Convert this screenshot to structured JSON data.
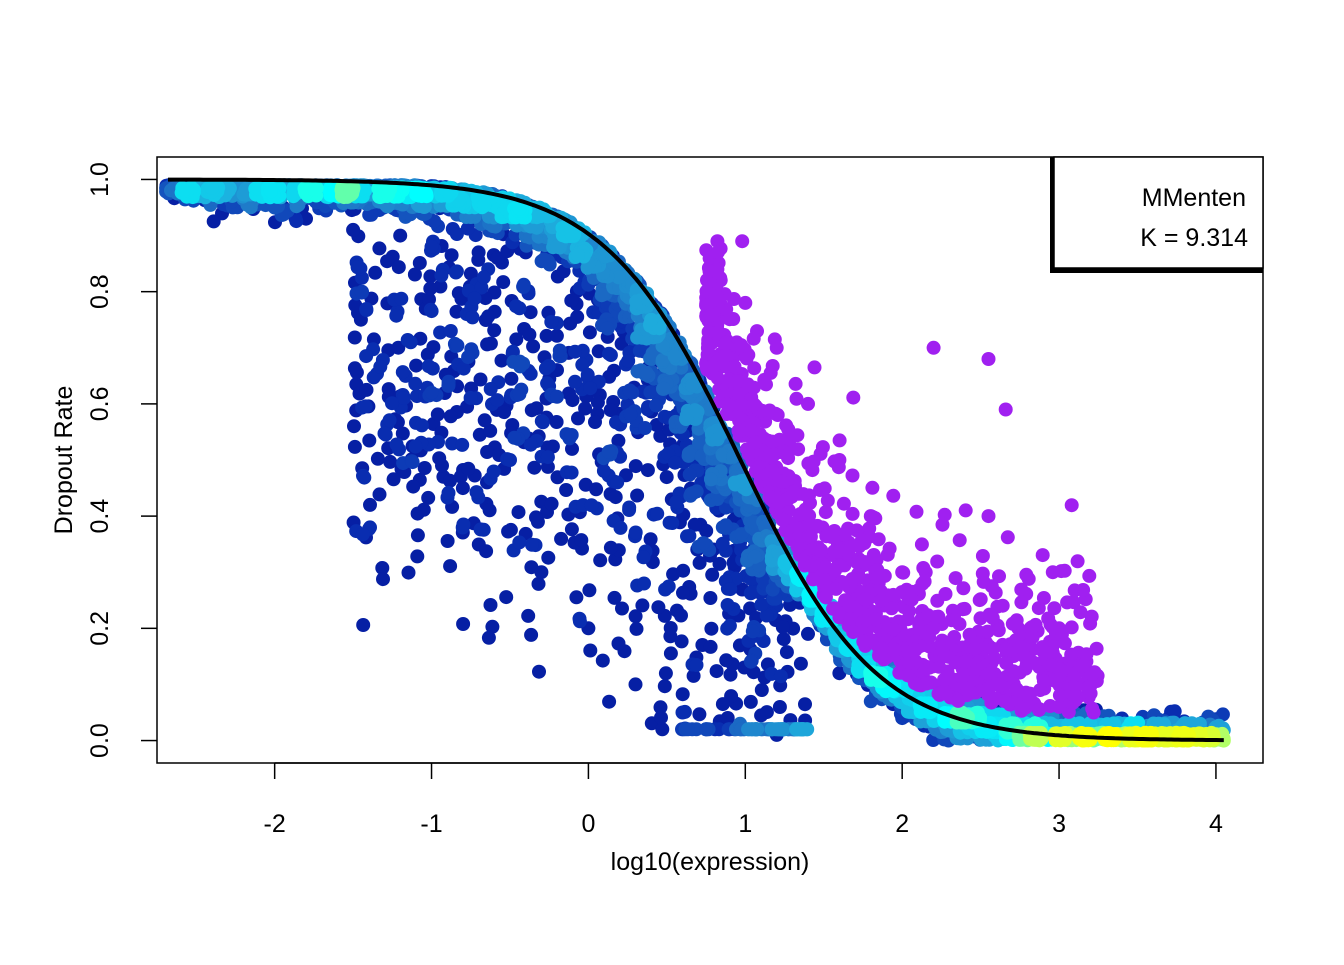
{
  "chart_data": {
    "type": "scatter",
    "title": "",
    "xlabel": "log10(expression)",
    "ylabel": "Dropout Rate",
    "xlim": [
      -2.75,
      4.3
    ],
    "ylim": [
      -0.04,
      1.04
    ],
    "xticks": [
      -2,
      -1,
      0,
      1,
      2,
      3,
      4
    ],
    "yticks": [
      0.0,
      0.2,
      0.4,
      0.6,
      0.8,
      1.0
    ],
    "xtick_labels": [
      "-2",
      "-1",
      "0",
      "1",
      "2",
      "3",
      "4"
    ],
    "ytick_labels": [
      "0.0",
      "0.2",
      "0.4",
      "0.6",
      "0.8",
      "1.0"
    ],
    "grid": false,
    "legend": {
      "position": "top-right",
      "lines": [
        "MMenten",
        "K = 9.314"
      ]
    },
    "fit_curve": {
      "name": "MMenten",
      "K": 9.314,
      "color": "#000000"
    },
    "density_colormap": [
      "#00008b",
      "#0a32b4",
      "#1f78c8",
      "#1eaadc",
      "#00ffff",
      "#b4ff64",
      "#ffff00"
    ],
    "highlight_color": "#a020f0",
    "sample_points": {
      "density": [
        [
          -2.68,
          0.985
        ],
        [
          -2.45,
          0.975
        ],
        [
          -2.2,
          0.965
        ],
        [
          -2.0,
          0.95
        ],
        [
          -1.8,
          0.93
        ],
        [
          -1.5,
          0.91
        ],
        [
          -1.2,
          0.9
        ],
        [
          -1.0,
          0.88
        ],
        [
          -0.7,
          0.87
        ],
        [
          -0.4,
          0.87
        ],
        [
          -0.2,
          0.88
        ],
        [
          0.0,
          0.85
        ],
        [
          0.2,
          0.8
        ],
        [
          0.4,
          0.75
        ],
        [
          0.6,
          0.66
        ],
        [
          0.8,
          0.56
        ],
        [
          1.0,
          0.43
        ],
        [
          1.2,
          0.3
        ],
        [
          1.4,
          0.19
        ],
        [
          1.6,
          0.12
        ],
        [
          1.8,
          0.07
        ],
        [
          2.0,
          0.04
        ],
        [
          2.2,
          0.035
        ],
        [
          2.4,
          0.03
        ],
        [
          2.6,
          0.02
        ],
        [
          2.8,
          0.012
        ],
        [
          3.0,
          0.01
        ],
        [
          3.3,
          0.006
        ],
        [
          3.6,
          0.002
        ],
        [
          4.05,
          0.0
        ],
        [
          -1.45,
          0.75
        ],
        [
          -1.0,
          0.62
        ],
        [
          -0.5,
          0.5
        ],
        [
          -0.8,
          0.45
        ],
        [
          -0.3,
          0.3
        ],
        [
          0.0,
          0.2
        ],
        [
          0.3,
          0.1
        ],
        [
          0.6,
          0.05
        ],
        [
          0.9,
          0.02
        ],
        [
          1.2,
          0.01
        ]
      ],
      "highlight": [
        [
          0.98,
          0.89
        ],
        [
          1.0,
          0.78
        ],
        [
          1.2,
          0.7
        ],
        [
          1.4,
          0.6
        ],
        [
          1.6,
          0.5
        ],
        [
          1.8,
          0.4
        ],
        [
          2.0,
          0.3
        ],
        [
          2.2,
          0.2
        ],
        [
          2.4,
          0.14
        ],
        [
          2.6,
          0.1
        ],
        [
          2.8,
          0.08
        ],
        [
          3.0,
          0.06
        ],
        [
          3.22,
          0.05
        ],
        [
          2.2,
          0.7
        ],
        [
          2.55,
          0.68
        ],
        [
          2.66,
          0.59
        ],
        [
          2.55,
          0.4
        ],
        [
          2.96,
          0.3
        ],
        [
          3.0,
          0.2
        ],
        [
          3.1,
          0.08
        ]
      ]
    }
  }
}
